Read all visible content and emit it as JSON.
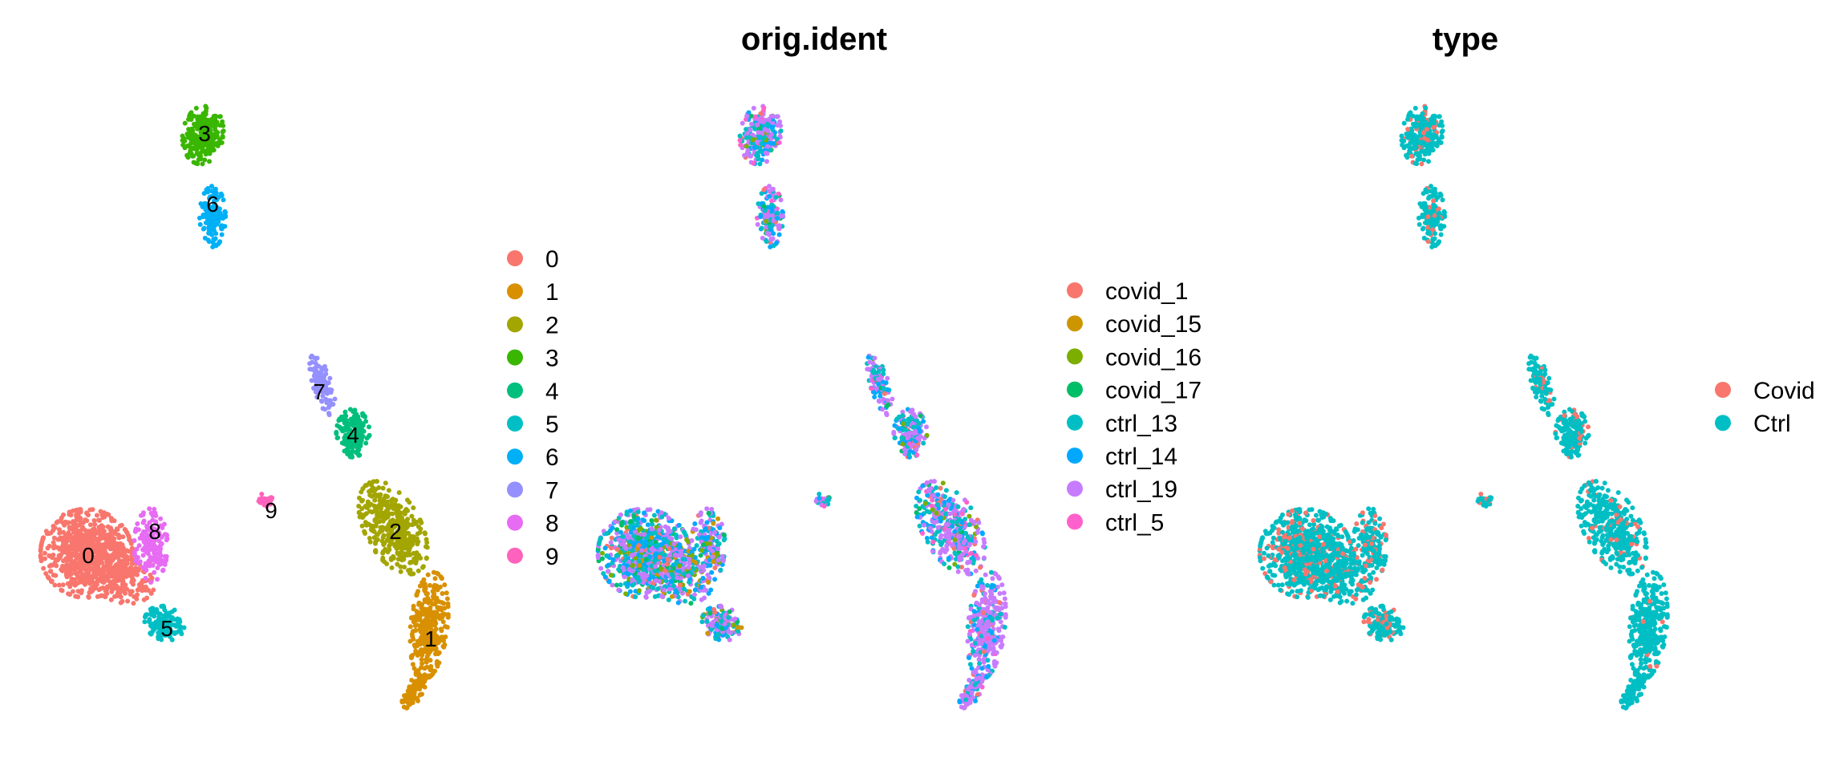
{
  "chart_data": [
    {
      "type": "scatter",
      "title": "",
      "xlabel": "",
      "ylabel": "",
      "grid": false,
      "axes": false,
      "legend_position": "right",
      "legend": [
        {
          "label": "0",
          "color": "#F8766D"
        },
        {
          "label": "1",
          "color": "#D89000"
        },
        {
          "label": "2",
          "color": "#A3A500"
        },
        {
          "label": "3",
          "color": "#39B600"
        },
        {
          "label": "4",
          "color": "#00BF7D"
        },
        {
          "label": "5",
          "color": "#00BFC4"
        },
        {
          "label": "6",
          "color": "#00B0F6"
        },
        {
          "label": "7",
          "color": "#9590FF"
        },
        {
          "label": "8",
          "color": "#E76BF3"
        },
        {
          "label": "9",
          "color": "#FF62BC"
        }
      ],
      "cluster_labels": [
        "0",
        "1",
        "2",
        "3",
        "4",
        "5",
        "6",
        "7",
        "8",
        "9"
      ]
    },
    {
      "type": "scatter",
      "title": "orig.ident",
      "xlabel": "",
      "ylabel": "",
      "grid": false,
      "axes": false,
      "legend_position": "right",
      "legend": [
        {
          "label": "covid_1",
          "color": "#F8766D"
        },
        {
          "label": "covid_15",
          "color": "#CD9600"
        },
        {
          "label": "covid_16",
          "color": "#7CAE00"
        },
        {
          "label": "covid_17",
          "color": "#00BE67"
        },
        {
          "label": "ctrl_13",
          "color": "#00BFC4"
        },
        {
          "label": "ctrl_14",
          "color": "#00A9FF"
        },
        {
          "label": "ctrl_19",
          "color": "#C77CFF"
        },
        {
          "label": "ctrl_5",
          "color": "#FF61CC"
        }
      ]
    },
    {
      "type": "scatter",
      "title": "type",
      "xlabel": "",
      "ylabel": "",
      "grid": false,
      "axes": false,
      "legend_position": "right",
      "legend": [
        {
          "label": "Covid",
          "color": "#F8766D"
        },
        {
          "label": "Ctrl",
          "color": "#00BFC4"
        }
      ]
    }
  ]
}
